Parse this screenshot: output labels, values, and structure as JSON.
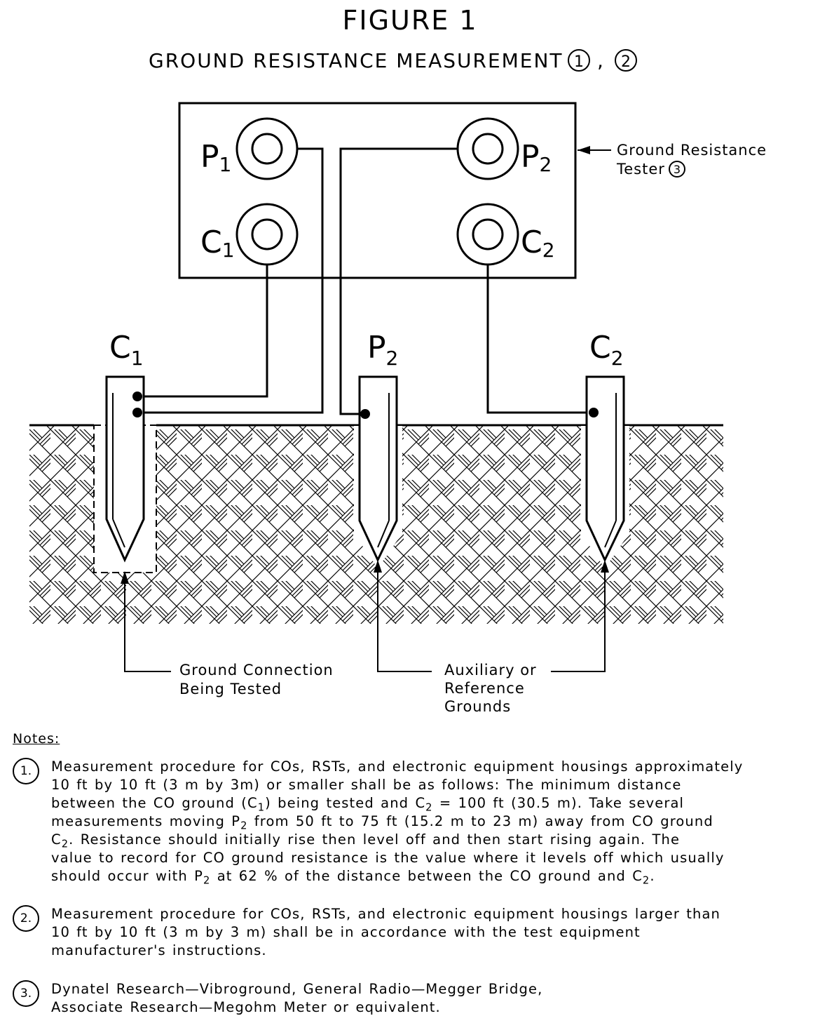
{
  "figure": {
    "title": "FIGURE 1",
    "subtitle": "GROUND RESISTANCE MEASUREMENT",
    "subtitle_refs": [
      "1",
      "2"
    ],
    "subtitle_separator": ","
  },
  "tester": {
    "label_line1": "Ground Resistance",
    "label_line2": "Tester",
    "label_ref": "3",
    "terminals": {
      "p1": {
        "letter": "P",
        "sub": "1"
      },
      "p2": {
        "letter": "P",
        "sub": "2"
      },
      "c1": {
        "letter": "C",
        "sub": "1"
      },
      "c2": {
        "letter": "C",
        "sub": "2"
      }
    }
  },
  "rods": {
    "c1": {
      "letter": "C",
      "sub": "1"
    },
    "p2": {
      "letter": "P",
      "sub": "2"
    },
    "c2": {
      "letter": "C",
      "sub": "2"
    }
  },
  "callouts": {
    "tested_line1": "Ground Connection",
    "tested_line2": "Being Tested",
    "aux_line1": "Auxiliary or",
    "aux_line2": "Reference",
    "aux_line3": "Grounds"
  },
  "notes": {
    "heading": "Notes:",
    "n1": {
      "num": "1.",
      "l1": "Measurement procedure for COs, RSTs, and electronic equipment housings approximately",
      "l2": "10 ft by 10 ft (3 m by 3m) or smaller shall be as follows:  The minimum distance",
      "l3a": "between the CO ground (C",
      "l3s1": "1",
      "l3b": ") being tested and C",
      "l3s2": "2",
      "l3c": " = 100 ft (30.5 m).  Take several",
      "l4a": "measurements moving P",
      "l4s": "2",
      "l4b": " from 50 ft to 75 ft (15.2 m to 23 m) away from CO ground",
      "l5a": "C",
      "l5s": "2",
      "l5b": ".  Resistance should initially rise then level off and then start rising again.  The",
      "l6": "value to record for CO ground resistance is the value where it levels off which usually",
      "l7a": "should occur with P",
      "l7s": "2",
      "l7b": " at 62 % of the distance between the CO ground and C",
      "l7s2": "2",
      "l7c": "."
    },
    "n2": {
      "num": "2.",
      "l1": "Measurement procedure for COs, RSTs, and electronic equipment housings larger than",
      "l2": "10 ft by 10 ft (3 m by 3 m) shall be in accordance with the test equipment",
      "l3": "manufacturer's instructions."
    },
    "n3": {
      "num": "3.",
      "l1": "Dynatel Research—Vibroground, General Radio—Megger Bridge,",
      "l2": "Associate Research—Megohm Meter or equivalent."
    }
  }
}
